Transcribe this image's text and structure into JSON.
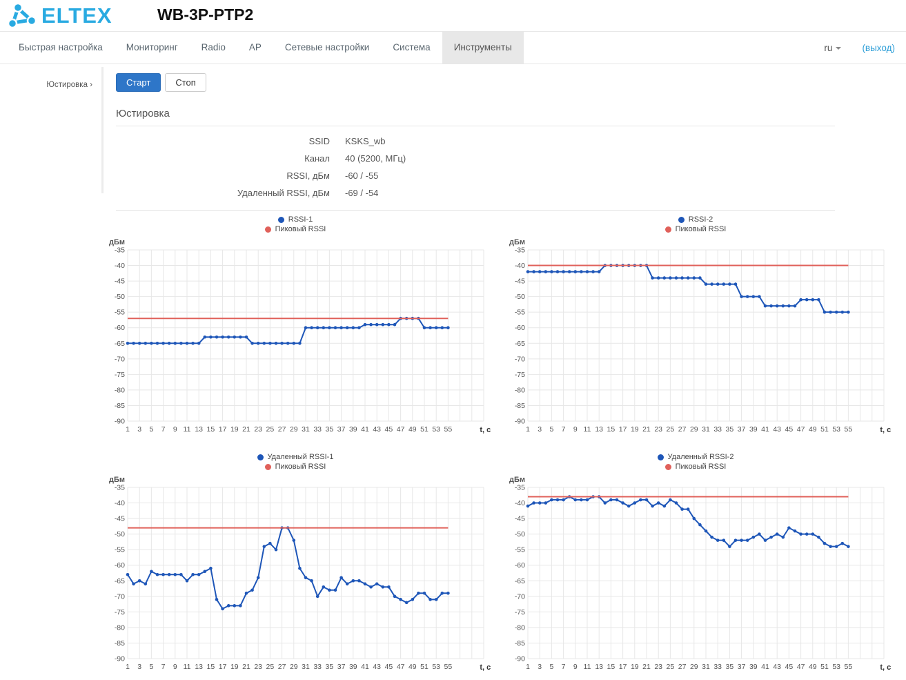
{
  "header": {
    "logo_text": "ELTEX",
    "title": "WB-3P-PTP2"
  },
  "nav": {
    "items": [
      {
        "label": "Быстрая настройка",
        "active": false
      },
      {
        "label": "Мониторинг",
        "active": false
      },
      {
        "label": "Radio",
        "active": false
      },
      {
        "label": "AP",
        "active": false
      },
      {
        "label": "Сетевые настройки",
        "active": false
      },
      {
        "label": "Система",
        "active": false
      },
      {
        "label": "Инструменты",
        "active": true
      }
    ],
    "language": "ru",
    "logout_label": "(выход)"
  },
  "sidebar": {
    "items": [
      {
        "label": "Юстировка ›"
      }
    ]
  },
  "toolbar": {
    "start_label": "Старт",
    "stop_label": "Стоп"
  },
  "section": {
    "title": "Юстировка",
    "fields": [
      {
        "label": "SSID",
        "value": "KSKS_wb"
      },
      {
        "label": "Канал",
        "value": "40 (5200, МГц)"
      },
      {
        "label": "RSSI, дБм",
        "value": "-60 / -55"
      },
      {
        "label": "Удаленный RSSI, дБм",
        "value": "-69 / -54"
      }
    ]
  },
  "colors": {
    "accent_button_blue": "#2e76c8",
    "logout_link_blue": "#2f9fd8",
    "logo_cyan": "#29aae1",
    "series_blue": "#1e56b8",
    "peak_red": "#e0605a",
    "grid_gray": "#e7e7e7",
    "axis_text": "#545454"
  },
  "chart_data": [
    {
      "type": "line",
      "xlabel": "t, c",
      "ylabel": "дБм",
      "xlim": [
        1,
        55
      ],
      "ylim": [
        -90,
        -35
      ],
      "grid": true,
      "legend_position": "top-center",
      "xticks": [
        1,
        3,
        5,
        7,
        9,
        11,
        13,
        15,
        17,
        19,
        21,
        23,
        25,
        27,
        29,
        31,
        33,
        35,
        37,
        39,
        41,
        43,
        45,
        47,
        49,
        51,
        53,
        55
      ],
      "yticks": [
        -35,
        -40,
        -45,
        -50,
        -55,
        -60,
        -65,
        -70,
        -75,
        -80,
        -85,
        -90
      ],
      "series": [
        {
          "name": "RSSI-1",
          "kind": "points-line",
          "color": "#1e56b8",
          "x_start": 1,
          "x_step": 1,
          "values": [
            -65,
            -65,
            -65,
            -65,
            -65,
            -65,
            -65,
            -65,
            -65,
            -65,
            -65,
            -65,
            -65,
            -63,
            -63,
            -63,
            -63,
            -63,
            -63,
            -63,
            -63,
            -65,
            -65,
            -65,
            -65,
            -65,
            -65,
            -65,
            -65,
            -65,
            -60,
            -60,
            -60,
            -60,
            -60,
            -60,
            -60,
            -60,
            -60,
            -60,
            -59,
            -59,
            -59,
            -59,
            -59,
            -59,
            -57,
            -57,
            -57,
            -57,
            -60,
            -60,
            -60,
            -60,
            -60
          ]
        },
        {
          "name": "Пиковый RSSI",
          "kind": "hline",
          "color": "#e0605a",
          "value": -57
        }
      ]
    },
    {
      "type": "line",
      "xlabel": "t, c",
      "ylabel": "дБм",
      "xlim": [
        1,
        55
      ],
      "ylim": [
        -90,
        -35
      ],
      "grid": true,
      "legend_position": "top-center",
      "xticks": [
        1,
        3,
        5,
        7,
        9,
        11,
        13,
        15,
        17,
        19,
        21,
        23,
        25,
        27,
        29,
        31,
        33,
        35,
        37,
        39,
        41,
        43,
        45,
        47,
        49,
        51,
        53,
        55
      ],
      "yticks": [
        -35,
        -40,
        -45,
        -50,
        -55,
        -60,
        -65,
        -70,
        -75,
        -80,
        -85,
        -90
      ],
      "series": [
        {
          "name": "RSSI-2",
          "kind": "points-line",
          "color": "#1e56b8",
          "x_start": 1,
          "x_step": 1,
          "values": [
            -42,
            -42,
            -42,
            -42,
            -42,
            -42,
            -42,
            -42,
            -42,
            -42,
            -42,
            -42,
            -42,
            -40,
            -40,
            -40,
            -40,
            -40,
            -40,
            -40,
            -40,
            -44,
            -44,
            -44,
            -44,
            -44,
            -44,
            -44,
            -44,
            -44,
            -46,
            -46,
            -46,
            -46,
            -46,
            -46,
            -50,
            -50,
            -50,
            -50,
            -53,
            -53,
            -53,
            -53,
            -53,
            -53,
            -51,
            -51,
            -51,
            -51,
            -55,
            -55,
            -55,
            -55,
            -55
          ]
        },
        {
          "name": "Пиковый RSSI",
          "kind": "hline",
          "color": "#e0605a",
          "value": -40
        }
      ]
    },
    {
      "type": "line",
      "xlabel": "t, c",
      "ylabel": "дБм",
      "xlim": [
        1,
        55
      ],
      "ylim": [
        -90,
        -35
      ],
      "grid": true,
      "legend_position": "top-center",
      "xticks": [
        1,
        3,
        5,
        7,
        9,
        11,
        13,
        15,
        17,
        19,
        21,
        23,
        25,
        27,
        29,
        31,
        33,
        35,
        37,
        39,
        41,
        43,
        45,
        47,
        49,
        51,
        53,
        55
      ],
      "yticks": [
        -35,
        -40,
        -45,
        -50,
        -55,
        -60,
        -65,
        -70,
        -75,
        -80,
        -85,
        -90
      ],
      "series": [
        {
          "name": "Удаленный RSSI-1",
          "kind": "points-line",
          "color": "#1e56b8",
          "x_start": 1,
          "x_step": 1,
          "values": [
            -63,
            -66,
            -65,
            -66,
            -62,
            -63,
            -63,
            -63,
            -63,
            -63,
            -65,
            -63,
            -63,
            -62,
            -61,
            -71,
            -74,
            -73,
            -73,
            -73,
            -69,
            -68,
            -64,
            -54,
            -53,
            -55,
            -48,
            -48,
            -52,
            -61,
            -64,
            -65,
            -70,
            -67,
            -68,
            -68,
            -64,
            -66,
            -65,
            -65,
            -66,
            -67,
            -66,
            -67,
            -67,
            -70,
            -71,
            -72,
            -71,
            -69,
            -69,
            -71,
            -71,
            -69,
            -69
          ]
        },
        {
          "name": "Пиковый RSSI",
          "kind": "hline",
          "color": "#e0605a",
          "value": -48
        }
      ]
    },
    {
      "type": "line",
      "xlabel": "t, c",
      "ylabel": "дБм",
      "xlim": [
        1,
        55
      ],
      "ylim": [
        -90,
        -35
      ],
      "grid": true,
      "legend_position": "top-center",
      "xticks": [
        1,
        3,
        5,
        7,
        9,
        11,
        13,
        15,
        17,
        19,
        21,
        23,
        25,
        27,
        29,
        31,
        33,
        35,
        37,
        39,
        41,
        43,
        45,
        47,
        49,
        51,
        53,
        55
      ],
      "yticks": [
        -35,
        -40,
        -45,
        -50,
        -55,
        -60,
        -65,
        -70,
        -75,
        -80,
        -85,
        -90
      ],
      "series": [
        {
          "name": "Удаленный RSSI-2",
          "kind": "points-line",
          "color": "#1e56b8",
          "x_start": 1,
          "x_step": 1,
          "values": [
            -41,
            -40,
            -40,
            -40,
            -39,
            -39,
            -39,
            -38,
            -39,
            -39,
            -39,
            -38,
            -38,
            -40,
            -39,
            -39,
            -40,
            -41,
            -40,
            -39,
            -39,
            -41,
            -40,
            -41,
            -39,
            -40,
            -42,
            -42,
            -45,
            -47,
            -49,
            -51,
            -52,
            -52,
            -54,
            -52,
            -52,
            -52,
            -51,
            -50,
            -52,
            -51,
            -50,
            -51,
            -48,
            -49,
            -50,
            -50,
            -50,
            -51,
            -53,
            -54,
            -54,
            -53,
            -54
          ]
        },
        {
          "name": "Пиковый RSSI",
          "kind": "hline",
          "color": "#e0605a",
          "value": -38
        }
      ]
    }
  ]
}
